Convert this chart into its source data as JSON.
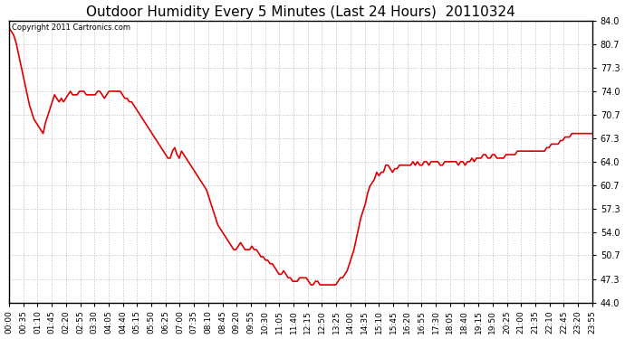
{
  "title": "Outdoor Humidity Every 5 Minutes (Last 24 Hours)  20110324",
  "copyright": "Copyright 2011 Cartronics.com",
  "line_color": "#dd0000",
  "bg_color": "#ffffff",
  "plot_bg_color": "#ffffff",
  "grid_color": "#bbbbbb",
  "ylim": [
    44.0,
    84.0
  ],
  "yticks": [
    44.0,
    47.3,
    50.7,
    54.0,
    57.3,
    60.7,
    64.0,
    67.3,
    70.7,
    74.0,
    77.3,
    80.7,
    84.0
  ],
  "x_labels": [
    "00:00",
    "00:35",
    "01:10",
    "01:45",
    "02:20",
    "02:55",
    "03:30",
    "04:05",
    "04:40",
    "05:15",
    "05:50",
    "06:25",
    "07:00",
    "07:35",
    "08:10",
    "08:45",
    "09:20",
    "09:55",
    "10:30",
    "11:05",
    "11:40",
    "12:15",
    "12:50",
    "13:25",
    "14:00",
    "14:35",
    "15:10",
    "15:45",
    "16:20",
    "16:55",
    "17:30",
    "18:05",
    "18:40",
    "19:15",
    "19:50",
    "20:25",
    "21:00",
    "21:35",
    "22:10",
    "22:45",
    "23:20",
    "23:55"
  ],
  "y_values": [
    83.0,
    82.5,
    82.0,
    81.0,
    79.5,
    78.0,
    76.5,
    75.0,
    73.5,
    72.0,
    71.0,
    70.0,
    69.5,
    69.0,
    68.5,
    68.0,
    69.5,
    70.5,
    71.5,
    72.5,
    73.5,
    73.0,
    72.5,
    73.0,
    72.5,
    73.0,
    73.5,
    74.0,
    73.5,
    73.5,
    73.5,
    74.0,
    74.0,
    74.0,
    73.5,
    73.5,
    73.5,
    73.5,
    73.5,
    74.0,
    74.0,
    73.5,
    73.0,
    73.5,
    74.0,
    74.0,
    74.0,
    74.0,
    74.0,
    74.0,
    73.5,
    73.0,
    73.0,
    72.5,
    72.5,
    72.0,
    71.5,
    71.0,
    70.5,
    70.0,
    69.5,
    69.0,
    68.5,
    68.0,
    67.5,
    67.0,
    66.5,
    66.0,
    65.5,
    65.0,
    64.5,
    64.5,
    65.5,
    66.0,
    65.0,
    64.5,
    65.5,
    65.0,
    64.5,
    64.0,
    63.5,
    63.0,
    62.5,
    62.0,
    61.5,
    61.0,
    60.5,
    60.0,
    59.0,
    58.0,
    57.0,
    56.0,
    55.0,
    54.5,
    54.0,
    53.5,
    53.0,
    52.5,
    52.0,
    51.5,
    51.5,
    52.0,
    52.5,
    52.0,
    51.5,
    51.5,
    51.5,
    52.0,
    51.5,
    51.5,
    51.0,
    50.5,
    50.5,
    50.0,
    50.0,
    49.5,
    49.5,
    49.0,
    48.5,
    48.0,
    48.0,
    48.5,
    48.0,
    47.5,
    47.5,
    47.0,
    47.0,
    47.0,
    47.5,
    47.5,
    47.5,
    47.5,
    47.0,
    46.5,
    46.5,
    47.0,
    47.0,
    46.5,
    46.5,
    46.5,
    46.5,
    46.5,
    46.5,
    46.5,
    46.5,
    47.0,
    47.5,
    47.5,
    48.0,
    48.5,
    49.5,
    50.5,
    51.5,
    53.0,
    54.5,
    56.0,
    57.0,
    58.0,
    59.5,
    60.5,
    61.0,
    61.5,
    62.5,
    62.0,
    62.5,
    62.5,
    63.5,
    63.5,
    63.0,
    62.5,
    63.0,
    63.0,
    63.5,
    63.5,
    63.5,
    63.5,
    63.5,
    63.5,
    64.0,
    63.5,
    64.0,
    63.5,
    63.5,
    64.0,
    64.0,
    63.5,
    64.0,
    64.0,
    64.0,
    64.0,
    63.5,
    63.5,
    64.0,
    64.0,
    64.0,
    64.0,
    64.0,
    64.0,
    63.5,
    64.0,
    64.0,
    63.5,
    64.0,
    64.0,
    64.5,
    64.0,
    64.5,
    64.5,
    64.5,
    65.0,
    65.0,
    64.5,
    64.5,
    65.0,
    65.0,
    64.5,
    64.5,
    64.5,
    64.5,
    65.0,
    65.0,
    65.0,
    65.0,
    65.0,
    65.5,
    65.5,
    65.5,
    65.5,
    65.5,
    65.5,
    65.5,
    65.5,
    65.5,
    65.5,
    65.5,
    65.5,
    65.5,
    66.0,
    66.0,
    66.5,
    66.5,
    66.5,
    66.5,
    67.0,
    67.0,
    67.5,
    67.5,
    67.5,
    68.0,
    68.0,
    68.0,
    68.0,
    68.0,
    68.0,
    68.0,
    68.0,
    68.0,
    68.0
  ],
  "title_fontsize": 11,
  "copyright_fontsize": 6,
  "tick_fontsize": 7,
  "line_width": 1.2
}
